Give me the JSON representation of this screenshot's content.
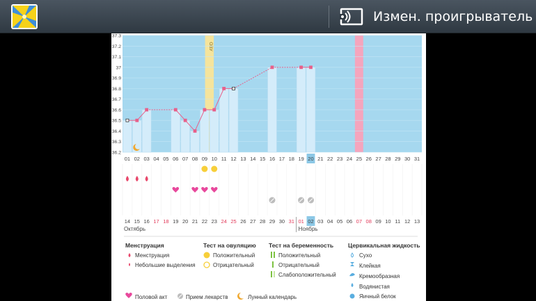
{
  "topbar": {
    "cast_label": "Измен. проигрыватель",
    "app_icon": "flower-icon",
    "cast_icon": "cast-icon"
  },
  "chart_data": {
    "type": "line",
    "title": "",
    "ylim": [
      36.2,
      37.3
    ],
    "y_ticks": [
      "37.3",
      "37.2",
      "37.1",
      "37",
      "36.9",
      "36.8",
      "36.7",
      "36.6",
      "36.5",
      "36.4",
      "36.3",
      "36.2"
    ],
    "cycle_days": [
      "01",
      "02",
      "03",
      "04",
      "05",
      "06",
      "07",
      "08",
      "09",
      "10",
      "11",
      "12",
      "13",
      "14",
      "15",
      "16",
      "17",
      "18",
      "19",
      "20",
      "21",
      "22",
      "23",
      "24",
      "25",
      "26",
      "27",
      "28",
      "29",
      "30",
      "31"
    ],
    "dates": [
      "14",
      "15",
      "16",
      "17",
      "18",
      "19",
      "20",
      "21",
      "22",
      "23",
      "24",
      "25",
      "26",
      "27",
      "28",
      "29",
      "30",
      "31",
      "01",
      "02",
      "03",
      "04",
      "05",
      "06",
      "07",
      "08",
      "09",
      "10",
      "11",
      "12",
      "13"
    ],
    "highlighted_cycle_day": "20",
    "highlighted_date": "02",
    "months": [
      "Октябрь",
      "Ноябрь"
    ],
    "ovu_label": "ОВУ",
    "series": [
      {
        "values": [
          36.5,
          36.5,
          36.6,
          null,
          null,
          36.6,
          36.5,
          36.4,
          36.6,
          36.6,
          36.8,
          36.8,
          null,
          null,
          null,
          37.0,
          null,
          null,
          37.0,
          37.0,
          null,
          null,
          null,
          null,
          null,
          null,
          null,
          null,
          null,
          null,
          null
        ]
      }
    ],
    "colors": {
      "line": "#e8608a",
      "chart_bg": "#a6d8ef",
      "bar": "#d4ecfa",
      "ovu": "#f5e49c",
      "period": "#f5a5bd",
      "today": "#8cc8e6"
    },
    "icons_row1": {
      "01": "blood-drop-icon",
      "02": "blood-drop-icon",
      "03": "blood-drop-icon"
    },
    "icons_row1b": {
      "09": "yellow-circle-icon",
      "10": "yellow-circle-icon"
    },
    "icons_row2": {
      "06": "heart-icon",
      "08": "heart-icon",
      "09": "heart-icon",
      "10": "heart-icon"
    },
    "icons_row3": {
      "16": "pill-icon",
      "19": "pill-icon",
      "20": "pill-icon"
    },
    "moon_day": "02"
  },
  "legend": {
    "menstruation": {
      "title": "Менструация",
      "items": [
        "Менструация",
        "Небольшие выделения"
      ]
    },
    "ovulation": {
      "title": "Тест на овуляцию",
      "items": [
        "Положительный",
        "Отрицательный"
      ]
    },
    "pregnancy": {
      "title": "Тест на беременность",
      "items": [
        "Положительный",
        "Отрицательный",
        "Слабоположительный"
      ]
    },
    "cervical": {
      "title": "Цервикальная жидкость",
      "items": [
        "Сухо",
        "Клейкая",
        "Кремообразная",
        "Водянистая",
        "Яичный белок"
      ]
    },
    "bottom": [
      "Половой акт",
      "Прием лекарств",
      "Лунный календарь"
    ]
  }
}
